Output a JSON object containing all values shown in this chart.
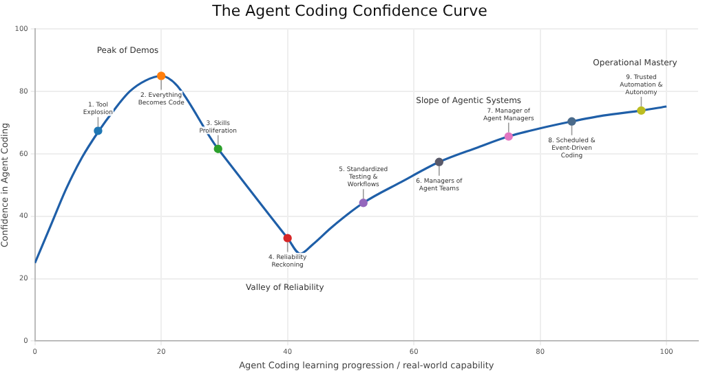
{
  "chart_data": {
    "type": "line",
    "title": "The Agent Coding Confidence Curve",
    "xlabel": "Agent Coding learning progression / real-world capability",
    "ylabel": "Confidence in Agent Coding",
    "xlim": [
      0,
      105
    ],
    "xticks": [
      0,
      20,
      40,
      60,
      80,
      100
    ],
    "ylim": [
      0,
      100
    ],
    "yticks": [
      0,
      20,
      40,
      60,
      80,
      100
    ],
    "grid": true,
    "legend": false,
    "series": [
      {
        "color": "#1f5fa8",
        "marker": "none",
        "x": [
          0,
          2.5,
          5,
          7.5,
          10,
          12.5,
          15,
          17.5,
          20,
          29,
          40,
          42,
          44,
          47,
          52,
          58,
          64,
          70,
          75,
          80,
          85,
          90,
          96,
          100
        ],
        "values": [
          25,
          37,
          49,
          59,
          67,
          74,
          80,
          83.5,
          85,
          61.6,
          33,
          28,
          31,
          36.5,
          44.3,
          51,
          57.4,
          62,
          65.6,
          68.2,
          70.4,
          72.3,
          73.9,
          75.2
        ]
      },
      {
        "type": "scatter",
        "marker": "circle",
        "x": [
          10,
          20,
          29,
          40,
          52,
          64,
          75,
          85,
          96
        ],
        "values": [
          67.4,
          85,
          61.6,
          33,
          44.3,
          57.4,
          65.6,
          70.4,
          73.9
        ],
        "colors": [
          "#1f77b4",
          "#ff7f0e",
          "#2ca02c",
          "#d62728",
          "#9467bd",
          "#5a5a6a",
          "#e377c2",
          "#4a6a8a",
          "#bcbd22"
        ]
      }
    ],
    "annotations": [
      {
        "text": "1. Tool\nExplosion",
        "x": 10,
        "y": 67.4
      },
      {
        "text": "2. Everything\nBecomes Code",
        "x": 20,
        "y": 85
      },
      {
        "text": "3. Skills\nProliferation",
        "x": 29,
        "y": 61.6
      },
      {
        "text": "4. Reliability\nReckoning",
        "x": 40,
        "y": 33
      },
      {
        "text": "5. Standardized\nTesting &\nWorkflows",
        "x": 52,
        "y": 44.3
      },
      {
        "text": "6. Managers of\nAgent Teams",
        "x": 64,
        "y": 57.4
      },
      {
        "text": "7. Manager of\nAgent Managers",
        "x": 75,
        "y": 65.6
      },
      {
        "text": "8. Scheduled &\nEvent-Driven\nCoding",
        "x": 85,
        "y": 70.4
      },
      {
        "text": "9. Trusted\nAutomation &\nAutonomy",
        "x": 96,
        "y": 73.9
      },
      "Peak of Demos",
      "Valley of Reliability",
      "Slope of Agentic Systems",
      "Operational Mastery"
    ]
  }
}
